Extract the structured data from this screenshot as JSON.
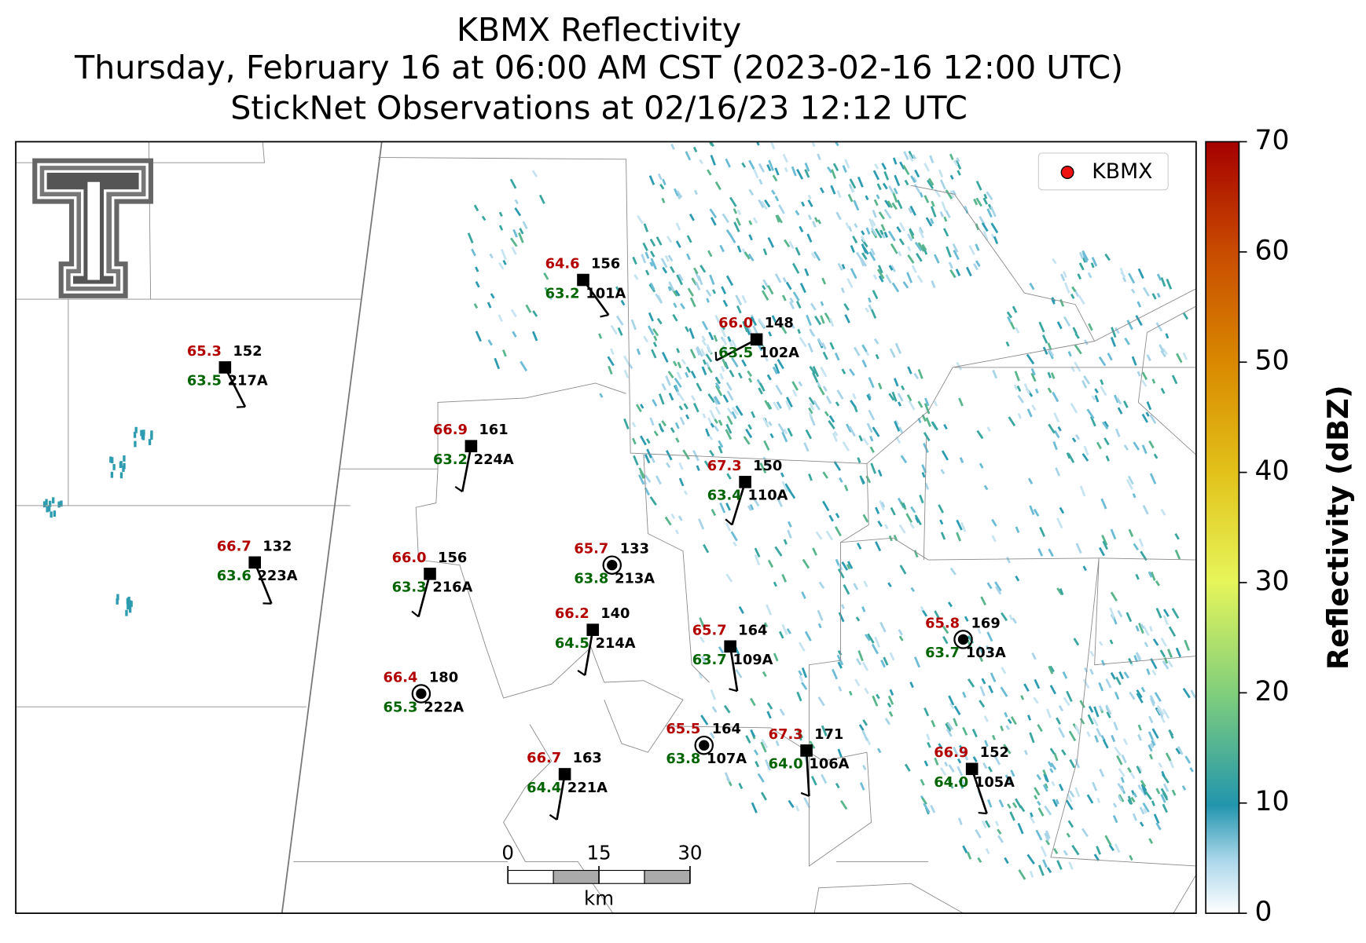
{
  "title": [
    "KBMX Reflectivity",
    "Thursday, February 16 at 06:00 AM CST (2023-02-16 12:00 UTC)",
    "StickNet Observations at 02/16/23 12:12 UTC"
  ],
  "legend": "KBMX",
  "colorbar": {
    "label": "Reflectivity (dBZ)",
    "lim": [
      0,
      70
    ],
    "ticks": [
      0,
      10,
      20,
      30,
      40,
      50,
      60,
      70
    ]
  },
  "scale_bar": {
    "lim": [
      0,
      30
    ],
    "ticks": [
      0,
      15,
      30
    ],
    "unit": "km"
  },
  "stations": [
    {
      "id": "101A",
      "temp": "64.6",
      "dewpoint": "63.2",
      "pressure": 156
    },
    {
      "id": "102A",
      "temp": "66.0",
      "dewpoint": "63.5",
      "pressure": 148
    },
    {
      "id": "217A",
      "temp": "65.3",
      "dewpoint": "63.5",
      "pressure": 152
    },
    {
      "id": "224A",
      "temp": "66.9",
      "dewpoint": "63.2",
      "pressure": 161
    },
    {
      "id": "110A",
      "temp": "67.3",
      "dewpoint": "63.4",
      "pressure": 150
    },
    {
      "id": "223A",
      "temp": "66.7",
      "dewpoint": "63.6",
      "pressure": 132
    },
    {
      "id": "216A",
      "temp": "66.0",
      "dewpoint": "63.3",
      "pressure": 156
    },
    {
      "id": "213A",
      "temp": "65.7",
      "dewpoint": "63.8",
      "pressure": 133
    },
    {
      "id": "214A",
      "temp": "66.2",
      "dewpoint": "64.5",
      "pressure": 140
    },
    {
      "id": "109A",
      "temp": "65.7",
      "dewpoint": "63.7",
      "pressure": 164
    },
    {
      "id": "103A",
      "temp": "65.8",
      "dewpoint": "63.7",
      "pressure": 169
    },
    {
      "id": "222A",
      "temp": "66.4",
      "dewpoint": "65.3",
      "pressure": 180
    },
    {
      "id": "107A",
      "temp": "65.5",
      "dewpoint": "63.8",
      "pressure": 164
    },
    {
      "id": "106A",
      "temp": "67.3",
      "dewpoint": "64.0",
      "pressure": 171
    },
    {
      "id": "221A",
      "temp": "66.7",
      "dewpoint": "64.4",
      "pressure": 163
    },
    {
      "id": "105A",
      "temp": "66.9",
      "dewpoint": "64.0",
      "pressure": 152
    }
  ]
}
